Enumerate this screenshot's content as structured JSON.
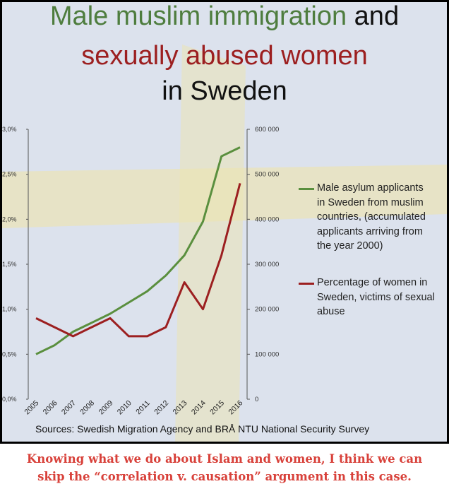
{
  "title": {
    "part1": "Male muslim immigration",
    "part2": "and",
    "line2": "sexually abused women",
    "line3": "in Sweden"
  },
  "colors": {
    "green": "#5a8f3e",
    "red": "#9c1f20",
    "flag_blue": "#c9d3e6",
    "flag_yellow": "#e9dc9a"
  },
  "chart_data": {
    "type": "line",
    "x": [
      "2005",
      "2006",
      "2007",
      "2008",
      "2009",
      "2010",
      "2011",
      "2012",
      "2013",
      "2014",
      "2015",
      "2016"
    ],
    "left_axis": {
      "ticks": [
        "0,0%",
        "0,5%",
        "1,0%",
        "1,5%",
        "2,0%",
        "2,5%",
        "3,0%"
      ],
      "ylim": [
        0,
        3.0
      ]
    },
    "right_axis": {
      "ticks": [
        "0",
        "100 000",
        "200 000",
        "300 000",
        "400 000",
        "500 000",
        "600 000"
      ],
      "ylim": [
        0,
        600000
      ]
    },
    "series": [
      {
        "name": "Male asylum applicants in Sweden from muslim countries, (accumulated applicants arriving from the year 2000)",
        "axis": "right",
        "color": "#5a8f3e",
        "values": [
          100000,
          120000,
          150000,
          170000,
          190000,
          215000,
          240000,
          275000,
          320000,
          395000,
          540000,
          560000
        ]
      },
      {
        "name": "Percentage of women in Sweden, victims of sexual abuse",
        "axis": "left",
        "color": "#9c1f20",
        "values": [
          0.9,
          0.8,
          0.7,
          0.8,
          0.9,
          0.7,
          0.7,
          0.8,
          1.3,
          1.0,
          1.6,
          2.4
        ]
      }
    ],
    "legend_placement": "right"
  },
  "legend": {
    "green_lines": [
      "Male asylum applicants",
      "in Sweden from muslim",
      "countries, (accumulated",
      "applicants arriving from",
      "the year 2000)"
    ],
    "red_lines": [
      "Percentage of women in",
      "Sweden, victims of sexual",
      "abuse"
    ]
  },
  "sources": "Sources: Swedish Migration Agency and BRÅ NTU National Security Survey",
  "caption": {
    "line1": "Knowing what we do about Islam and women, I think we can",
    "line2": "skip the “correlation v. causation” argument in this case."
  }
}
